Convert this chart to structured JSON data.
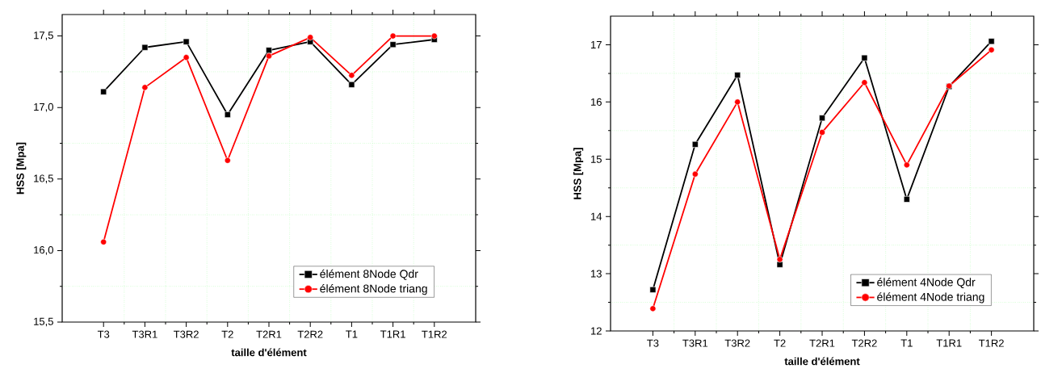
{
  "chart_data": [
    {
      "type": "line",
      "xlabel": "taille d'élément",
      "ylabel": "HSS [Mpa]",
      "categories": [
        "T3",
        "T3R1",
        "T3R2",
        "T2",
        "T2R1",
        "T2R2",
        "T1",
        "T1R1",
        "T1R2"
      ],
      "series": [
        {
          "name": "élément 8Node Qdr",
          "color": "#000000",
          "marker": "square",
          "values": [
            17.11,
            17.42,
            17.46,
            16.95,
            17.4,
            17.46,
            17.16,
            17.44,
            17.475
          ]
        },
        {
          "name": "élément 8Node triang",
          "color": "#ff0000",
          "marker": "circle",
          "values": [
            16.06,
            17.14,
            17.35,
            16.63,
            17.36,
            17.49,
            17.225,
            17.5,
            17.5
          ]
        }
      ],
      "ylim": [
        15.5,
        17.65
      ],
      "yticks": [
        {
          "value": 15.5,
          "label": "15,5"
        },
        {
          "value": 16.0,
          "label": "16,0"
        },
        {
          "value": 16.5,
          "label": "16,5"
        },
        {
          "value": 17.0,
          "label": "17,0"
        },
        {
          "value": 17.5,
          "label": "17,5"
        }
      ],
      "grid": true,
      "legend": "bottom right"
    },
    {
      "type": "line",
      "xlabel": "taille d'élément",
      "ylabel": "HSS [Mpa]",
      "categories": [
        "T3",
        "T3R1",
        "T3R2",
        "T2",
        "T2R1",
        "T2R2",
        "T1",
        "T1R1",
        "T1R2"
      ],
      "series": [
        {
          "name": "élément 4Node Qdr",
          "color": "#000000",
          "marker": "square",
          "values": [
            12.72,
            15.26,
            16.47,
            13.16,
            15.72,
            16.77,
            14.3,
            16.27,
            17.06
          ]
        },
        {
          "name": "élément 4Node triang",
          "color": "#ff0000",
          "marker": "circle",
          "values": [
            12.39,
            14.74,
            16.0,
            13.25,
            15.47,
            16.34,
            14.9,
            16.28,
            16.91
          ]
        }
      ],
      "ylim": [
        12,
        17.5
      ],
      "yticks": [
        12,
        13,
        14,
        15,
        16,
        17
      ],
      "grid": true,
      "legend": "bottom right"
    }
  ]
}
